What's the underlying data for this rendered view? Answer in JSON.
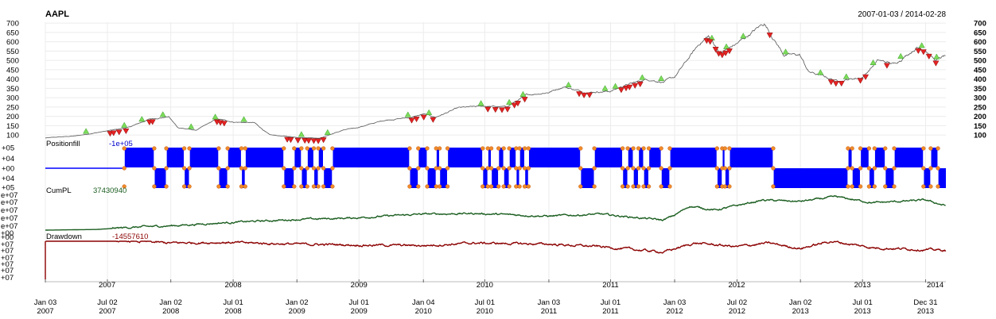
{
  "chart_data": {
    "type": "line",
    "title": "AAPL",
    "date_range": "2007-01-03 / 2014-02-28",
    "x_range": [
      "2007-01-03",
      "2014-02-28"
    ],
    "grid": true,
    "price_panel": {
      "ylim": [
        75,
        705
      ],
      "yticks": [
        "700",
        "650",
        "600",
        "550",
        "500",
        "450",
        "400",
        "350",
        "300",
        "250",
        "200",
        "150",
        "100"
      ],
      "series": {
        "values_approx": [
          [
            "2007-01-03",
            84
          ],
          [
            "2007-04-01",
            95
          ],
          [
            "2007-07-02",
            122
          ],
          [
            "2007-09-01",
            140
          ],
          [
            "2007-11-01",
            185
          ],
          [
            "2007-12-27",
            198
          ],
          [
            "2008-01-22",
            140
          ],
          [
            "2008-03-15",
            125
          ],
          [
            "2008-05-15",
            186
          ],
          [
            "2008-07-01",
            170
          ],
          [
            "2008-09-01",
            165
          ],
          [
            "2008-10-15",
            100
          ],
          [
            "2009-01-02",
            88
          ],
          [
            "2009-03-10",
            84
          ],
          [
            "2009-05-15",
            125
          ],
          [
            "2009-07-01",
            142
          ],
          [
            "2009-09-15",
            180
          ],
          [
            "2009-12-01",
            195
          ],
          [
            "2010-01-04",
            212
          ],
          [
            "2010-02-08",
            195
          ],
          [
            "2010-04-15",
            245
          ],
          [
            "2010-07-01",
            255
          ],
          [
            "2010-09-01",
            250
          ],
          [
            "2010-11-01",
            315
          ],
          [
            "2011-01-03",
            330
          ],
          [
            "2011-02-15",
            360
          ],
          [
            "2011-04-15",
            330
          ],
          [
            "2011-07-01",
            335
          ],
          [
            "2011-08-10",
            365
          ],
          [
            "2011-10-15",
            400
          ],
          [
            "2011-12-01",
            385
          ],
          [
            "2012-01-03",
            410
          ],
          [
            "2012-03-15",
            590
          ],
          [
            "2012-04-10",
            630
          ],
          [
            "2012-05-15",
            540
          ],
          [
            "2012-07-02",
            590
          ],
          [
            "2012-09-19",
            700
          ],
          [
            "2012-11-15",
            530
          ],
          [
            "2012-12-31",
            530
          ],
          [
            "2013-01-25",
            440
          ],
          [
            "2013-04-19",
            390
          ],
          [
            "2013-07-01",
            410
          ],
          [
            "2013-08-15",
            500
          ],
          [
            "2013-10-01",
            480
          ],
          [
            "2013-12-05",
            570
          ],
          [
            "2013-12-31",
            560
          ],
          [
            "2014-01-28",
            500
          ],
          [
            "2014-02-28",
            525
          ]
        ]
      },
      "markers": {
        "buy": {
          "color": "#7ddc5a",
          "dates": [
            "2007-05-01",
            "2007-08-20",
            "2007-10-10",
            "2007-12-10",
            "2008-03-01",
            "2008-05-10",
            "2008-08-01",
            "2009-01-15",
            "2009-04-01",
            "2009-11-20",
            "2010-01-20",
            "2010-06-20",
            "2010-09-10",
            "2010-10-20",
            "2011-03-01",
            "2011-06-15",
            "2011-07-15",
            "2011-10-01",
            "2011-11-25",
            "2012-04-20",
            "2012-06-01",
            "2012-07-20",
            "2012-11-20",
            "2013-03-01",
            "2013-05-15",
            "2013-08-01",
            "2013-10-20",
            "2013-12-20",
            "2014-02-01"
          ]
        },
        "sell": {
          "color": "#e52222",
          "dates": [
            "2007-07-10",
            "2007-07-20",
            "2007-08-05",
            "2007-08-25",
            "2007-11-01",
            "2007-11-10",
            "2008-05-15",
            "2008-05-25",
            "2008-06-05",
            "2008-12-05",
            "2008-12-15",
            "2009-01-05",
            "2009-01-25",
            "2009-02-05",
            "2009-02-20",
            "2009-03-05",
            "2009-03-20",
            "2009-12-01",
            "2009-12-15",
            "2010-01-05",
            "2010-02-01",
            "2010-07-10",
            "2010-08-01",
            "2010-08-20",
            "2010-09-05",
            "2010-09-25",
            "2010-10-05",
            "2010-10-25",
            "2011-04-01",
            "2011-04-15",
            "2011-05-01",
            "2011-08-01",
            "2011-08-15",
            "2011-08-25",
            "2011-09-10",
            "2011-09-25",
            "2012-04-05",
            "2012-04-15",
            "2012-05-01",
            "2012-05-10",
            "2012-05-20",
            "2012-05-30",
            "2012-06-10",
            "2012-10-05",
            "2013-04-01",
            "2013-04-15",
            "2013-05-01",
            "2013-06-25",
            "2013-07-10",
            "2013-09-10",
            "2013-12-10",
            "2013-12-25",
            "2014-01-10",
            "2014-01-30"
          ]
        }
      }
    },
    "position_panel": {
      "label": "Positionfill",
      "value_label": "-1e+05",
      "yticks": [
        "+05",
        "+04",
        "+00",
        "+04",
        "+05"
      ],
      "fill_color": "#0000ff",
      "series": {
        "steps": [
          [
            "2007-01-03",
            0
          ],
          [
            "2007-08-20",
            1
          ],
          [
            "2007-11-15",
            -1
          ],
          [
            "2007-12-20",
            1
          ],
          [
            "2008-02-10",
            -1
          ],
          [
            "2008-02-25",
            1
          ],
          [
            "2008-05-20",
            -1
          ],
          [
            "2008-06-15",
            1
          ],
          [
            "2008-07-25",
            -1
          ],
          [
            "2008-08-05",
            1
          ],
          [
            "2008-11-25",
            -1
          ],
          [
            "2008-12-25",
            1
          ],
          [
            "2009-01-15",
            -1
          ],
          [
            "2009-02-01",
            1
          ],
          [
            "2009-02-20",
            -1
          ],
          [
            "2009-03-05",
            1
          ],
          [
            "2009-03-20",
            -1
          ],
          [
            "2009-04-15",
            1
          ],
          [
            "2009-11-25",
            -1
          ],
          [
            "2009-12-20",
            1
          ],
          [
            "2010-01-15",
            -1
          ],
          [
            "2010-02-10",
            1
          ],
          [
            "2010-02-20",
            -1
          ],
          [
            "2010-03-15",
            1
          ],
          [
            "2010-06-25",
            -1
          ],
          [
            "2010-07-10",
            1
          ],
          [
            "2010-07-20",
            -1
          ],
          [
            "2010-08-10",
            1
          ],
          [
            "2010-08-25",
            -1
          ],
          [
            "2010-09-10",
            1
          ],
          [
            "2010-09-30",
            -1
          ],
          [
            "2010-10-10",
            1
          ],
          [
            "2010-10-25",
            -1
          ],
          [
            "2010-11-05",
            1
          ],
          [
            "2011-04-05",
            -1
          ],
          [
            "2011-05-15",
            1
          ],
          [
            "2011-08-05",
            -1
          ],
          [
            "2011-08-20",
            1
          ],
          [
            "2011-09-05",
            -1
          ],
          [
            "2011-09-20",
            1
          ],
          [
            "2011-10-05",
            -1
          ],
          [
            "2011-10-20",
            1
          ],
          [
            "2011-11-25",
            -1
          ],
          [
            "2011-12-20",
            1
          ],
          [
            "2012-05-05",
            -1
          ],
          [
            "2012-05-20",
            1
          ],
          [
            "2012-05-28",
            -1
          ],
          [
            "2012-06-10",
            1
          ],
          [
            "2012-10-15",
            -1
          ],
          [
            "2013-05-20",
            1
          ],
          [
            "2013-06-01",
            -1
          ],
          [
            "2013-06-25",
            1
          ],
          [
            "2013-07-20",
            -1
          ],
          [
            "2013-08-05",
            1
          ],
          [
            "2013-09-05",
            -1
          ],
          [
            "2013-10-01",
            1
          ],
          [
            "2013-12-25",
            -1
          ],
          [
            "2014-01-15",
            1
          ],
          [
            "2014-02-05",
            -1
          ],
          [
            "2014-02-28",
            -1
          ]
        ]
      }
    },
    "cumpl_panel": {
      "label": "CumPL",
      "value_label": "37430940",
      "line_color": "#1b5e20",
      "yticks": [
        "e+07",
        "e+07",
        "e+07",
        "e+07",
        "e+07",
        "+00"
      ],
      "series": {
        "values_approx": [
          [
            "2007-01-03",
            0
          ],
          [
            "2007-06-01",
            0.02
          ],
          [
            "2007-09-01",
            0.08
          ],
          [
            "2008-01-01",
            0.13
          ],
          [
            "2008-06-01",
            0.22
          ],
          [
            "2009-01-01",
            0.32
          ],
          [
            "2009-06-01",
            0.36
          ],
          [
            "2010-01-01",
            0.48
          ],
          [
            "2010-06-01",
            0.5
          ],
          [
            "2011-01-01",
            0.42
          ],
          [
            "2011-06-01",
            0.48
          ],
          [
            "2011-12-01",
            0.3
          ],
          [
            "2012-01-03",
            0.45
          ],
          [
            "2012-02-15",
            0.72
          ],
          [
            "2012-05-01",
            0.6
          ],
          [
            "2012-09-15",
            0.9
          ],
          [
            "2012-12-31",
            0.86
          ],
          [
            "2013-04-15",
            1.0
          ],
          [
            "2013-08-01",
            0.82
          ],
          [
            "2013-12-31",
            0.9
          ],
          [
            "2014-02-28",
            0.73
          ]
        ]
      }
    },
    "drawdown_panel": {
      "label": "Drawdown",
      "value_label": "-14557610",
      "line_color": "#8b0000",
      "yticks": [
        "+00",
        "+07",
        "+07",
        "+07",
        "+07",
        "+07",
        "+07",
        "+07"
      ],
      "series": {
        "values_approx": [
          [
            "2007-01-03",
            -1.0
          ],
          [
            "2007-01-04",
            0
          ],
          [
            "2007-09-01",
            0
          ],
          [
            "2008-01-01",
            -0.05
          ],
          [
            "2008-06-01",
            -0.03
          ],
          [
            "2009-01-01",
            -0.08
          ],
          [
            "2009-06-01",
            -0.1
          ],
          [
            "2010-01-01",
            -0.12
          ],
          [
            "2010-06-01",
            -0.05
          ],
          [
            "2011-01-01",
            -0.08
          ],
          [
            "2011-06-01",
            -0.15
          ],
          [
            "2011-12-01",
            -0.3
          ],
          [
            "2012-03-01",
            -0.05
          ],
          [
            "2012-07-01",
            -0.15
          ],
          [
            "2012-10-01",
            -0.05
          ],
          [
            "2013-01-01",
            -0.2
          ],
          [
            "2013-04-01",
            0
          ],
          [
            "2013-08-01",
            -0.18
          ],
          [
            "2014-02-28",
            -0.25
          ]
        ]
      }
    },
    "x_axis": {
      "year_labels": [
        "2007",
        "2008",
        "2009",
        "2010",
        "2011",
        "2012",
        "2013",
        "2014"
      ],
      "ticks": [
        {
          "line1": "Jan 03",
          "line2": "2007"
        },
        {
          "line1": "Jul 02",
          "line2": "2007"
        },
        {
          "line1": "Jan 02",
          "line2": "2008"
        },
        {
          "line1": "Jul 01",
          "line2": "2008"
        },
        {
          "line1": "Jan 02",
          "line2": "2009"
        },
        {
          "line1": "Jul 01",
          "line2": "2009"
        },
        {
          "line1": "Jan 04",
          "line2": "2010"
        },
        {
          "line1": "Jul 01",
          "line2": "2010"
        },
        {
          "line1": "Jan 03",
          "line2": "2011"
        },
        {
          "line1": "Jul 01",
          "line2": "2011"
        },
        {
          "line1": "Jan 03",
          "line2": "2012"
        },
        {
          "line1": "Jul 02",
          "line2": "2012"
        },
        {
          "line1": "Jan 02",
          "line2": "2013"
        },
        {
          "line1": "Jul 01",
          "line2": "2013"
        },
        {
          "line1": "Dec 31",
          "line2": "2013"
        }
      ]
    }
  }
}
